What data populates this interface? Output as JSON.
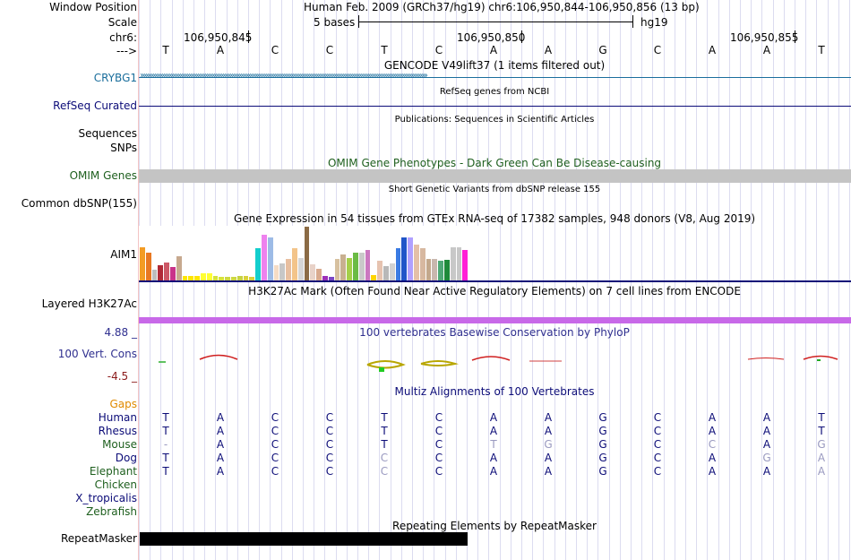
{
  "header": {
    "window_position_label": "Window Position",
    "window_position_value": "Human Feb. 2009 (GRCh37/hg19)   chr6:106,950,844-106,950,856 (13 bp)",
    "scale_label": "Scale",
    "scale_value": "5 bases",
    "scale_assembly": "hg19",
    "chrom_label": "chr6:",
    "strand_label": "--->",
    "coords": [
      "106,950,845",
      "106,950,850",
      "106,950,855"
    ]
  },
  "bases": [
    "T",
    "A",
    "C",
    "C",
    "T",
    "C",
    "A",
    "A",
    "G",
    "C",
    "A",
    "A",
    "T"
  ],
  "tracks": {
    "gencode_title": "GENCODE V49lift37 (1 items filtered out)",
    "gencode_label": "CRYBG1",
    "refseq_title": "RefSeq genes from NCBI",
    "refseq_label": "RefSeq Curated",
    "publications_title": "Publications: Sequences in Scientific Articles",
    "sequences_label": "Sequences",
    "snps_label": "SNPs",
    "omim_title": "OMIM Gene Phenotypes - Dark Green Can Be Disease-causing",
    "omim_label": "OMIM Genes",
    "dbsnp_title": "Short Genetic Variants from dbSNP release 155",
    "dbsnp_label": "Common dbSNP(155)",
    "gtex_title": "Gene Expression in 54 tissues from GTEx RNA-seq of 17382 samples, 948 donors (V8, Aug 2019)",
    "gtex_label": "AIM1",
    "h3k27ac_title": "H3K27Ac Mark (Often Found Near Active Regulatory Elements) on 7 cell lines from ENCODE",
    "h3k27ac_label": "Layered H3K27Ac",
    "phylop_title": "100 vertebrates Basewise Conservation by PhyloP",
    "phylop_label": "100 Vert. Cons",
    "phylop_max": "4.88 _",
    "phylop_min": "-4.5 _",
    "multiz_title": "Multiz Alignments of 100 Vertebrates",
    "gaps_label": "Gaps",
    "repeat_title": "Repeating Elements by RepeatMasker",
    "repeat_label": "RepeatMasker"
  },
  "colors": {
    "gencode": "#1a6e9c",
    "refseq": "#0c0c78",
    "omim": "#1e5f1e",
    "phylop": "#2f2f8f",
    "phylop_min": "#8b1a1a",
    "gaps": "#e08a00",
    "h3k27ac": "#c869e8"
  },
  "gtex_values": [
    0.62,
    0.52,
    0.2,
    0.28,
    0.34,
    0.25,
    0.45,
    0.08,
    0.08,
    0.08,
    0.14,
    0.14,
    0.08,
    0.06,
    0.06,
    0.06,
    0.08,
    0.08,
    0.06,
    0.6,
    0.85,
    0.8,
    0.28,
    0.32,
    0.4,
    0.6,
    0.42,
    1.0,
    0.3,
    0.22,
    0.08,
    0.06,
    0.4,
    0.48,
    0.42,
    0.52,
    0.52,
    0.56,
    0.1,
    0.36,
    0.26,
    0.32,
    0.6,
    0.8,
    0.8,
    0.66,
    0.6,
    0.4,
    0.4,
    0.36,
    0.38,
    0.62,
    0.62,
    0.56
  ],
  "gtex_colors": [
    "#f39c24",
    "#e87822",
    "#bdbdbd",
    "#b02a37",
    "#cc5866",
    "#c9328a",
    "#c7a98f",
    "#ffe500",
    "#ffe500",
    "#ffe500",
    "#ffff33",
    "#ffff33",
    "#d6e23a",
    "#d6e23a",
    "#cdd742",
    "#cdd742",
    "#c6d243",
    "#d8d03c",
    "#d8d03c",
    "#13cecd",
    "#ee82ee",
    "#9dbbe6",
    "#f5dcc5",
    "#c7c7c7",
    "#e8bfa0",
    "#f3c48a",
    "#d6d6d6",
    "#8b6b45",
    "#e8d2c8",
    "#d9aa8e",
    "#9c30b8",
    "#7a46c6",
    "#d7c1a0",
    "#c8b090",
    "#a5cf4a",
    "#6bbb45",
    "#c9c9c9",
    "#cb77c0",
    "#ffd400",
    "#e6c3b0",
    "#b8b8b8",
    "#d2d2d2",
    "#3a7be3",
    "#2055c8",
    "#b0a0ff",
    "#e4c0a8",
    "#d7b8a0",
    "#c3a88c",
    "#c8b7ae",
    "#4fa876",
    "#1e8a3a",
    "#c8c8c8",
    "#c8c8c8",
    "#ff20d6"
  ],
  "alignment": [
    {
      "name": "Human",
      "color": "#0c0c78",
      "bases": [
        "T",
        "A",
        "C",
        "C",
        "T",
        "C",
        "A",
        "A",
        "G",
        "C",
        "A",
        "A",
        "T"
      ],
      "light": []
    },
    {
      "name": "Rhesus",
      "color": "#0c0c78",
      "bases": [
        "T",
        "A",
        "C",
        "C",
        "T",
        "C",
        "A",
        "A",
        "G",
        "C",
        "A",
        "A",
        "T"
      ],
      "light": []
    },
    {
      "name": "Mouse",
      "color": "#1e5f1e",
      "bases": [
        "-",
        "A",
        "C",
        "C",
        "T",
        "C",
        "T",
        "G",
        "G",
        "C",
        "C",
        "A",
        "G"
      ],
      "light": [
        0,
        6,
        7,
        10,
        12
      ]
    },
    {
      "name": "Dog",
      "color": "#0c0c78",
      "bases": [
        "T",
        "A",
        "C",
        "C",
        "C",
        "C",
        "A",
        "A",
        "G",
        "C",
        "A",
        "G",
        "A"
      ],
      "light": [
        4,
        11,
        12
      ]
    },
    {
      "name": "Elephant",
      "color": "#1e5f1e",
      "bases": [
        "T",
        "A",
        "C",
        "C",
        "C",
        "C",
        "A",
        "A",
        "G",
        "C",
        "A",
        "A",
        "A"
      ],
      "light": [
        4,
        12
      ]
    },
    {
      "name": "Chicken",
      "color": "#1e5f1e",
      "bases": [],
      "light": []
    },
    {
      "name": "X_tropicalis",
      "color": "#0c0c78",
      "bases": [],
      "light": []
    },
    {
      "name": "Zebrafish",
      "color": "#1e5f1e",
      "bases": [],
      "light": []
    }
  ]
}
